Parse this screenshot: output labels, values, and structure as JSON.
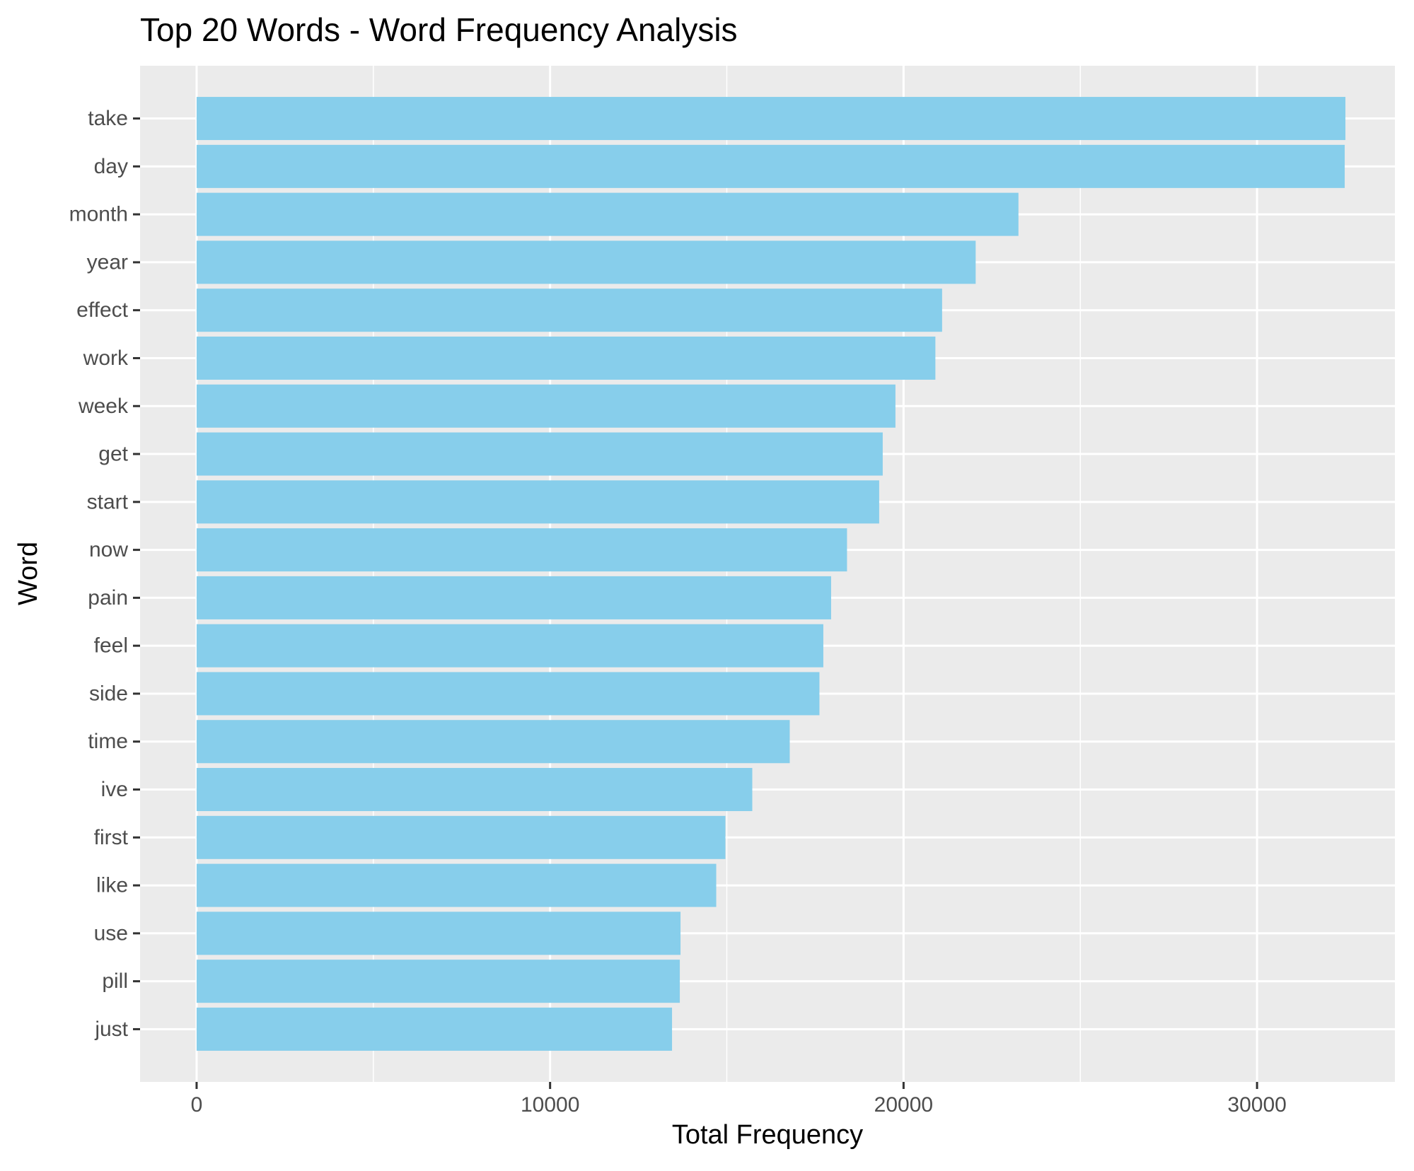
{
  "chart_data": {
    "type": "bar",
    "orientation": "horizontal",
    "title": "Top 20 Words - Word Frequency Analysis",
    "xlabel": "Total Frequency",
    "ylabel": "Word",
    "xlim": [
      -1600,
      33900
    ],
    "xticks": [
      0,
      10000,
      20000,
      30000
    ],
    "xtick_labels": [
      "0",
      "10000",
      "20000",
      "30000"
    ],
    "grid": true,
    "bar_color": "#87ceeb",
    "panel_color": "#ebebeb",
    "categories": [
      "take",
      "day",
      "month",
      "year",
      "effect",
      "work",
      "week",
      "get",
      "start",
      "now",
      "pain",
      "feel",
      "side",
      "time",
      "ive",
      "first",
      "like",
      "use",
      "pill",
      "just"
    ],
    "values": [
      32500,
      32480,
      23250,
      22040,
      21090,
      20900,
      19770,
      19410,
      19310,
      18400,
      17950,
      17730,
      17620,
      16780,
      15720,
      14960,
      14700,
      13690,
      13670,
      13450
    ]
  }
}
